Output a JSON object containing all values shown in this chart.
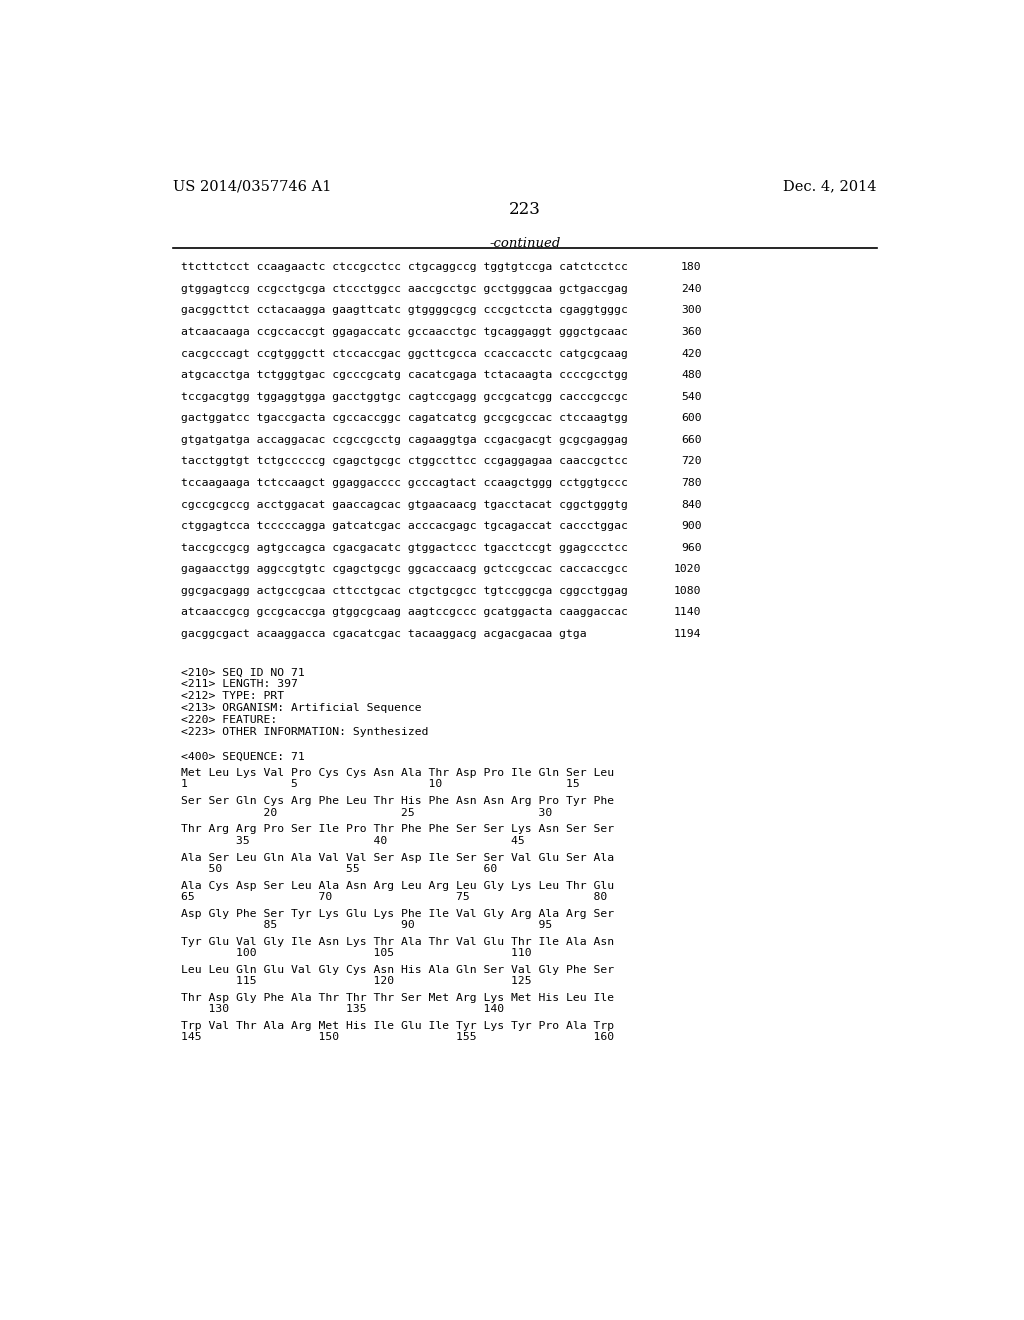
{
  "header_left": "US 2014/0357746 A1",
  "header_right": "Dec. 4, 2014",
  "page_number": "223",
  "continued_text": "-continued",
  "background_color": "#ffffff",
  "text_color": "#000000",
  "sequence_lines": [
    [
      "ttcttctcct ccaagaactc ctccgcctcc ctgcaggccg tggtgtccga catctcctcc",
      "180"
    ],
    [
      "gtggagtccg ccgcctgcga ctccctggcc aaccgcctgc gcctgggcaa gctgaccgag",
      "240"
    ],
    [
      "gacggcttct cctacaagga gaagttcatc gtggggcgcg cccgctccta cgaggtgggc",
      "300"
    ],
    [
      "atcaacaaga ccgccaccgt ggagaccatc gccaacctgc tgcaggaggt gggctgcaac",
      "360"
    ],
    [
      "cacgcccagt ccgtgggctt ctccaccgac ggcttcgcca ccaccacctc catgcgcaag",
      "420"
    ],
    [
      "atgcacctga tctgggtgac cgcccgcatg cacatcgaga tctacaagta ccccgcctgg",
      "480"
    ],
    [
      "tccgacgtgg tggaggtgga gacctggtgc cagtccgagg gccgcatcgg cacccgccgc",
      "540"
    ],
    [
      "gactggatcc tgaccgacta cgccaccggc cagatcatcg gccgcgccac ctccaagtgg",
      "600"
    ],
    [
      "gtgatgatga accaggacac ccgccgcctg cagaaggtga ccgacgacgt gcgcgaggag",
      "660"
    ],
    [
      "tacctggtgt tctgcccccg cgagctgcgc ctggccttcc ccgaggagaa caaccgctcc",
      "720"
    ],
    [
      "tccaagaaga tctccaagct ggaggacccc gcccagtact ccaagctggg cctggtgccc",
      "780"
    ],
    [
      "cgccgcgccg acctggacat gaaccagcac gtgaacaacg tgacctacat cggctgggtg",
      "840"
    ],
    [
      "ctggagtcca tcccccagga gatcatcgac acccacgagc tgcagaccat caccctggac",
      "900"
    ],
    [
      "taccgccgcg agtgccagca cgacgacatc gtggactccc tgacctccgt ggagccctcc",
      "960"
    ],
    [
      "gagaacctgg aggccgtgtc cgagctgcgc ggcaccaacg gctccgccac caccaccgcc",
      "1020"
    ],
    [
      "ggcgacgagg actgccgcaa cttcctgcac ctgctgcgcc tgtccggcga cggcctggag",
      "1080"
    ],
    [
      "atcaaccgcg gccgcaccga gtggcgcaag aagtccgccc gcatggacta caaggaccac",
      "1140"
    ],
    [
      "gacggcgact acaaggacca cgacatcgac tacaaggacg acgacgacaa gtga",
      "1194"
    ]
  ],
  "metadata_lines": [
    "<210> SEQ ID NO 71",
    "<211> LENGTH: 397",
    "<212> TYPE: PRT",
    "<213> ORGANISM: Artificial Sequence",
    "<220> FEATURE:",
    "<223> OTHER INFORMATION: Synthesized"
  ],
  "sequence_label": "<400> SEQUENCE: 71",
  "amino_acid_blocks": [
    {
      "seq": "Met Leu Lys Val Pro Cys Cys Asn Ala Thr Asp Pro Ile Gln Ser Leu",
      "num": "1               5                   10                  15"
    },
    {
      "seq": "Ser Ser Gln Cys Arg Phe Leu Thr His Phe Asn Asn Arg Pro Tyr Phe",
      "num": "            20                  25                  30"
    },
    {
      "seq": "Thr Arg Arg Pro Ser Ile Pro Thr Phe Phe Ser Ser Lys Asn Ser Ser",
      "num": "        35                  40                  45"
    },
    {
      "seq": "Ala Ser Leu Gln Ala Val Val Ser Asp Ile Ser Ser Val Glu Ser Ala",
      "num": "    50                  55                  60"
    },
    {
      "seq": "Ala Cys Asp Ser Leu Ala Asn Arg Leu Arg Leu Gly Lys Leu Thr Glu",
      "num": "65                  70                  75                  80"
    },
    {
      "seq": "Asp Gly Phe Ser Tyr Lys Glu Lys Phe Ile Val Gly Arg Ala Arg Ser",
      "num": "            85                  90                  95"
    },
    {
      "seq": "Tyr Glu Val Gly Ile Asn Lys Thr Ala Thr Val Glu Thr Ile Ala Asn",
      "num": "        100                 105                 110"
    },
    {
      "seq": "Leu Leu Gln Glu Val Gly Cys Asn His Ala Gln Ser Val Gly Phe Ser",
      "num": "        115                 120                 125"
    },
    {
      "seq": "Thr Asp Gly Phe Ala Thr Thr Thr Ser Met Arg Lys Met His Leu Ile",
      "num": "    130                 135                 140"
    },
    {
      "seq": "Trp Val Thr Ala Arg Met His Ile Glu Ile Tyr Lys Tyr Pro Ala Trp",
      "num": "145                 150                 155                 160"
    }
  ]
}
